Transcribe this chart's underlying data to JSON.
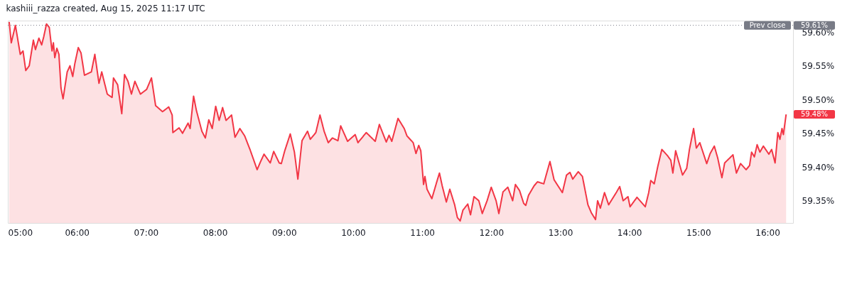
{
  "chart_data": {
    "type": "area",
    "x": [
      5.02,
      5.05,
      5.11,
      5.18,
      5.22,
      5.26,
      5.31,
      5.37,
      5.4,
      5.45,
      5.49,
      5.52,
      5.56,
      5.6,
      5.64,
      5.66,
      5.68,
      5.71,
      5.74,
      5.77,
      5.8,
      5.86,
      5.9,
      5.94,
      5.97,
      6.02,
      6.06,
      6.11,
      6.21,
      6.26,
      6.32,
      6.36,
      6.44,
      6.51,
      6.53,
      6.59,
      6.65,
      6.69,
      6.74,
      6.79,
      6.84,
      6.92,
      7.01,
      7.08,
      7.14,
      7.24,
      7.33,
      7.38,
      7.39,
      7.48,
      7.53,
      7.61,
      7.64,
      7.69,
      7.73,
      7.81,
      7.86,
      7.91,
      7.96,
      8.01,
      8.06,
      8.11,
      8.16,
      8.24,
      8.29,
      8.36,
      8.43,
      8.51,
      8.61,
      8.66,
      8.71,
      8.8,
      8.85,
      8.93,
      8.96,
      9.01,
      9.09,
      9.15,
      9.2,
      9.26,
      9.34,
      9.38,
      9.46,
      9.52,
      9.58,
      9.64,
      9.7,
      9.78,
      9.82,
      9.92,
      10.03,
      10.07,
      10.19,
      10.32,
      10.38,
      10.48,
      10.52,
      10.56,
      10.65,
      10.74,
      10.78,
      10.87,
      10.91,
      10.95,
      10.98,
      11.02,
      11.04,
      11.07,
      11.14,
      11.22,
      11.25,
      11.29,
      11.35,
      11.4,
      11.47,
      11.51,
      11.55,
      11.59,
      11.66,
      11.7,
      11.75,
      11.82,
      11.87,
      11.94,
      12.0,
      12.07,
      12.11,
      12.17,
      12.24,
      12.31,
      12.35,
      12.41,
      12.47,
      12.5,
      12.54,
      12.62,
      12.67,
      12.76,
      12.85,
      12.91,
      13.03,
      13.09,
      13.14,
      13.18,
      13.26,
      13.32,
      13.4,
      13.45,
      13.51,
      13.54,
      13.58,
      13.64,
      13.7,
      13.81,
      13.86,
      13.91,
      13.98,
      14.01,
      14.11,
      14.23,
      14.28,
      14.31,
      14.36,
      14.41,
      14.47,
      14.55,
      14.6,
      14.63,
      14.67,
      14.77,
      14.83,
      14.87,
      14.93,
      14.97,
      15.02,
      15.12,
      15.17,
      15.23,
      15.28,
      15.34,
      15.38,
      15.5,
      15.55,
      15.61,
      15.69,
      15.74,
      15.77,
      15.81,
      15.85,
      15.89,
      15.94,
      16.02,
      16.06,
      16.11,
      16.15,
      16.18,
      16.21,
      16.23,
      16.27
    ],
    "series": [
      {
        "color": "#f23645",
        "values": [
          59.615,
          59.584,
          59.61,
          59.567,
          59.572,
          59.543,
          59.55,
          59.588,
          59.574,
          59.591,
          59.581,
          59.593,
          59.612,
          59.607,
          59.572,
          59.584,
          59.562,
          59.576,
          59.567,
          59.517,
          59.501,
          59.541,
          59.55,
          59.534,
          59.553,
          59.577,
          59.569,
          59.536,
          59.541,
          59.567,
          59.524,
          59.541,
          59.508,
          59.503,
          59.532,
          59.522,
          59.479,
          59.537,
          59.527,
          59.508,
          59.527,
          59.508,
          59.515,
          59.532,
          59.491,
          59.482,
          59.489,
          59.477,
          59.451,
          59.458,
          59.45,
          59.465,
          59.457,
          59.505,
          59.484,
          59.453,
          59.443,
          59.47,
          59.457,
          59.49,
          59.469,
          59.488,
          59.469,
          59.477,
          59.444,
          59.457,
          59.446,
          59.425,
          59.396,
          59.408,
          59.419,
          59.406,
          59.423,
          59.406,
          59.405,
          59.424,
          59.449,
          59.422,
          59.382,
          59.439,
          59.453,
          59.441,
          59.451,
          59.477,
          59.453,
          59.436,
          59.443,
          59.439,
          59.461,
          59.438,
          59.448,
          59.436,
          59.451,
          59.438,
          59.463,
          59.437,
          59.447,
          59.438,
          59.472,
          59.457,
          59.446,
          59.436,
          59.42,
          59.432,
          59.424,
          59.374,
          59.386,
          59.367,
          59.353,
          59.381,
          59.391,
          59.372,
          59.348,
          59.367,
          59.344,
          59.325,
          59.32,
          59.336,
          59.345,
          59.329,
          59.356,
          59.35,
          59.331,
          59.35,
          59.37,
          59.35,
          59.331,
          59.363,
          59.37,
          59.35,
          59.374,
          59.365,
          59.346,
          59.343,
          59.358,
          59.372,
          59.378,
          59.375,
          59.408,
          59.381,
          59.362,
          59.388,
          59.392,
          59.382,
          59.393,
          59.386,
          59.344,
          59.332,
          59.322,
          59.35,
          59.339,
          59.362,
          59.344,
          59.362,
          59.371,
          59.35,
          59.356,
          59.341,
          59.355,
          59.341,
          59.362,
          59.38,
          59.375,
          59.4,
          59.426,
          59.417,
          59.41,
          59.391,
          59.424,
          59.388,
          59.398,
          59.426,
          59.457,
          59.428,
          59.436,
          59.405,
          59.42,
          59.431,
          59.413,
          59.384,
          59.406,
          59.418,
          59.391,
          59.405,
          59.396,
          59.402,
          59.422,
          59.415,
          59.433,
          59.422,
          59.431,
          59.419,
          59.426,
          59.406,
          59.451,
          59.441,
          59.457,
          59.448,
          59.478
        ]
      }
    ],
    "xlim": [
      5.0,
      16.37
    ],
    "xticks": [
      {
        "value": 5,
        "label": "05:00"
      },
      {
        "value": 6,
        "label": "06:00"
      },
      {
        "value": 7,
        "label": "07:00"
      },
      {
        "value": 8,
        "label": "08:00"
      },
      {
        "value": 9,
        "label": "09:00"
      },
      {
        "value": 10,
        "label": "10:00"
      },
      {
        "value": 11,
        "label": "11:00"
      },
      {
        "value": 12,
        "label": "12:00"
      },
      {
        "value": 13,
        "label": "13:00"
      },
      {
        "value": 14,
        "label": "14:00"
      },
      {
        "value": 15,
        "label": "15:00"
      },
      {
        "value": 16,
        "label": "16:00"
      }
    ],
    "ylim": [
      59.317,
      59.617
    ],
    "yticks": [
      {
        "value": 59.35,
        "label": "59.35%"
      },
      {
        "value": 59.4,
        "label": "59.40%"
      },
      {
        "value": 59.45,
        "label": "59.45%"
      },
      {
        "value": 59.5,
        "label": "59.50%"
      },
      {
        "value": 59.55,
        "label": "59.55%"
      },
      {
        "value": 59.6,
        "label": "59.60%"
      }
    ],
    "ref_lines": [
      {
        "axis": "y",
        "value": 59.61,
        "label": "Prev close",
        "color": "#787b86",
        "line_style": "dotted"
      }
    ],
    "annotations": [
      "kashiii_razza created, Aug 15, 2025 11:17 UTC",
      "59.61%",
      "59.48%"
    ],
    "grid": false,
    "marker": "none",
    "line_style": "solid"
  }
}
